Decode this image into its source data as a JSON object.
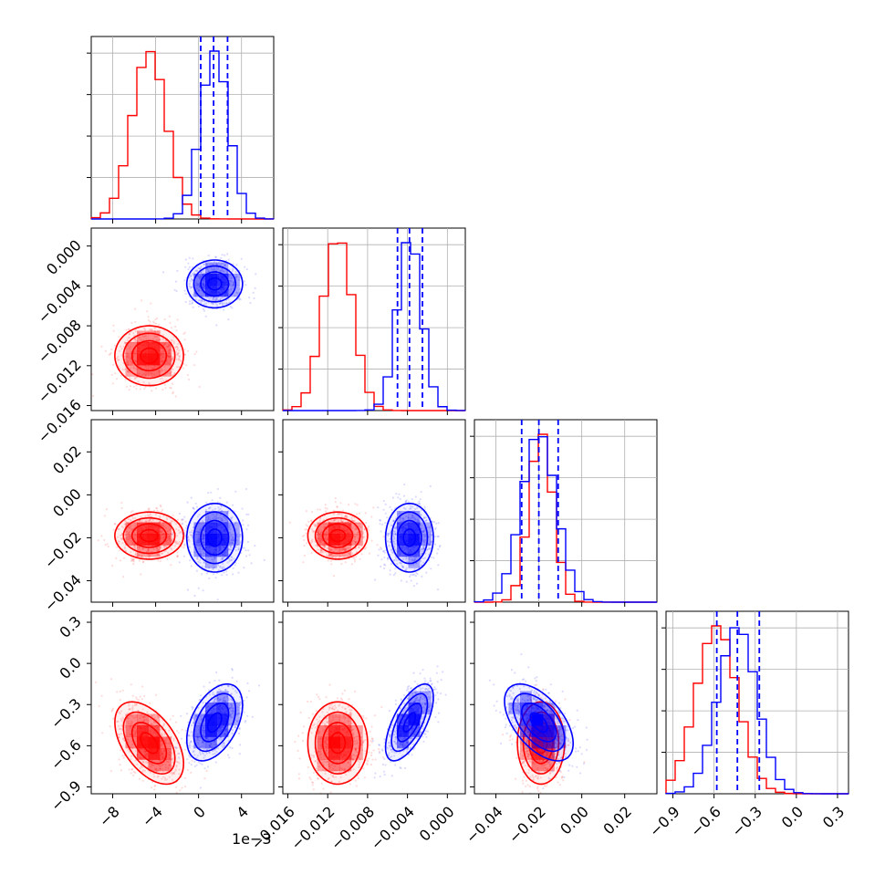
{
  "figure": {
    "offset_text": "1e−3"
  },
  "colors": {
    "series_a": "#ff0000",
    "series_b": "#0000ff",
    "grid": "#b0b0b0"
  },
  "chart_data": {
    "type": "corner",
    "params": [
      {
        "range": [
          -10,
          7
        ],
        "ticks": [
          -8,
          -4,
          0,
          4
        ],
        "tick_labels": [
          "−8",
          "−4",
          "0",
          "4"
        ]
      },
      {
        "range": [
          -0.0165,
          0.0018
        ],
        "ticks": [
          -0.016,
          -0.012,
          -0.008,
          -0.004,
          0.0
        ],
        "tick_labels": [
          "−0.016",
          "−0.012",
          "−0.008",
          "−0.004",
          "0.000"
        ]
      },
      {
        "range": [
          -0.05,
          0.035
        ],
        "ticks": [
          -0.04,
          -0.02,
          0.0,
          0.02
        ],
        "tick_labels": [
          "−0.04",
          "−0.02",
          "0.00",
          "0.02"
        ]
      },
      {
        "range": [
          -0.95,
          0.38
        ],
        "ticks": [
          -0.9,
          -0.6,
          -0.3,
          0.0,
          0.3
        ],
        "tick_labels": [
          "−0.9",
          "−0.6",
          "−0.3",
          "0.0",
          "0.3"
        ]
      }
    ],
    "series": [
      {
        "color": "#ff0000",
        "mean": [
          -4.6,
          -0.011,
          -0.019,
          -0.58
        ],
        "sd": [
          1.6,
          0.0015,
          0.0055,
          0.15
        ],
        "corr": [
          [
            0,
            3,
            -0.5
          ]
        ]
      },
      {
        "color": "#0000ff",
        "mean": [
          1.5,
          -0.0038,
          -0.02,
          -0.43
        ],
        "sd": [
          1.3,
          0.0012,
          0.008,
          0.14
        ],
        "corr": [
          [
            0,
            3,
            0.45
          ],
          [
            1,
            3,
            0.65
          ],
          [
            2,
            3,
            -0.55
          ]
        ]
      }
    ],
    "quantile_lines": {
      "color": "#0000ff",
      "values": [
        [
          0.2,
          1.4,
          2.7
        ],
        [
          -0.005,
          -0.0038,
          -0.0025
        ],
        [
          -0.028,
          -0.02,
          -0.011
        ],
        [
          -0.58,
          -0.43,
          -0.27
        ]
      ]
    },
    "contour_levels": [
      0.5,
      1.0,
      1.5,
      2.0
    ],
    "grid": true
  }
}
